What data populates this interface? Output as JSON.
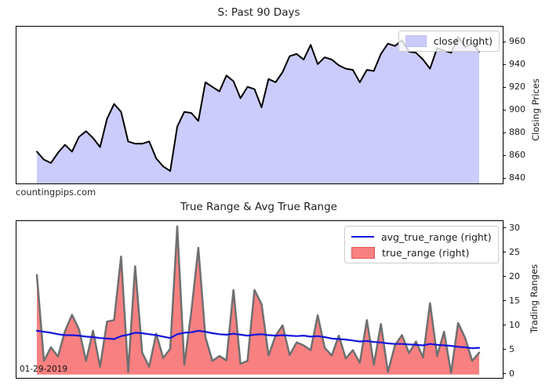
{
  "figure": {
    "background": "#ffffff",
    "frame_color": "#000000"
  },
  "chart_data": [
    {
      "type": "area",
      "title": "S: Past 90 Days",
      "watermark": "countingpips.com",
      "ylabel": "Closing Prices",
      "ylabel_side": "right",
      "yticks": [
        840,
        860,
        880,
        900,
        920,
        940,
        960
      ],
      "ylim": [
        836,
        974
      ],
      "grid": false,
      "legend_position": "upper right",
      "legend": [
        {
          "label": "close (right)",
          "swatch": "patch",
          "color": "#ccccfc",
          "border": "#bcbcf2"
        }
      ],
      "series": [
        {
          "name": "close",
          "type": "area",
          "fill": "#ccccfc",
          "stroke": "#000000",
          "stroke_width": 2,
          "fill_to": "bottom",
          "values": [
            864,
            857,
            854,
            863,
            870,
            864,
            877,
            882,
            876,
            868,
            893,
            906,
            899,
            873,
            871,
            871,
            873,
            858,
            851,
            847,
            886,
            899,
            898,
            891,
            925,
            921,
            917,
            931,
            926,
            911,
            921,
            919,
            903,
            928,
            925,
            934,
            948,
            950,
            945,
            958,
            941,
            947,
            945,
            940,
            937,
            936,
            925,
            936,
            935,
            950,
            959,
            957,
            962,
            952,
            951,
            945,
            937,
            955,
            953,
            951,
            965,
            956,
            959,
            952
          ]
        }
      ]
    },
    {
      "type": "area+line",
      "title": "True Range & Avg True Range",
      "annotation": "01-29-2019",
      "ylabel": "Trading Ranges",
      "ylabel_side": "right",
      "yticks": [
        0,
        5,
        10,
        15,
        20,
        25,
        30
      ],
      "ylim": [
        -0.7,
        31.6
      ],
      "grid": false,
      "legend_position": "upper right",
      "legend": [
        {
          "label": "avg_true_range (right)",
          "swatch": "line",
          "color": "#1414dc"
        },
        {
          "label": "true_range (right)",
          "swatch": "patch",
          "color": "#f98080",
          "border": "#e05a5a"
        }
      ],
      "series": [
        {
          "name": "true_range",
          "type": "area",
          "fill": "#f98080",
          "stroke": "#6f6f6f",
          "stroke_width": 2.5,
          "fill_to": "zero",
          "values": [
            20.5,
            2.8,
            5.6,
            3.7,
            8.9,
            12.3,
            9.3,
            2.8,
            9.0,
            1.6,
            10.9,
            11.2,
            24.3,
            0.5,
            22.3,
            4.5,
            1.6,
            8.4,
            3.4,
            5.3,
            30.5,
            2.0,
            13.0,
            26.1,
            7.7,
            2.8,
            3.8,
            2.9,
            17.4,
            2.2,
            2.8,
            17.4,
            14.5,
            3.9,
            8.0,
            10.1,
            4.0,
            6.6,
            6.0,
            5.0,
            12.2,
            5.5,
            3.9,
            8.0,
            3.3,
            5.0,
            2.4,
            11.2,
            2.0,
            10.4,
            0.5,
            6.0,
            8.1,
            4.4,
            6.8,
            3.5,
            14.7,
            3.8,
            8.8,
            0.3,
            10.6,
            7.5,
            2.8,
            4.5
          ]
        },
        {
          "name": "avg_true_range",
          "type": "line",
          "stroke": "#1414dc",
          "stroke_width": 2.2,
          "values": [
            9.0,
            8.8,
            8.6,
            8.3,
            8.1,
            8.1,
            8.0,
            7.8,
            7.7,
            7.5,
            7.4,
            7.3,
            7.9,
            8.2,
            8.6,
            8.5,
            8.3,
            8.1,
            7.8,
            7.5,
            8.3,
            8.6,
            8.7,
            9.0,
            8.8,
            8.5,
            8.3,
            8.2,
            8.4,
            8.2,
            8.0,
            8.2,
            8.3,
            8.1,
            8.0,
            8.1,
            8.0,
            7.9,
            8.0,
            7.8,
            7.9,
            7.7,
            7.4,
            7.3,
            7.2,
            7.0,
            6.8,
            6.9,
            6.7,
            6.6,
            6.4,
            6.3,
            6.3,
            6.2,
            6.1,
            6.0,
            6.3,
            6.1,
            6.0,
            5.9,
            5.7,
            5.6,
            5.4,
            5.5
          ]
        }
      ]
    }
  ]
}
